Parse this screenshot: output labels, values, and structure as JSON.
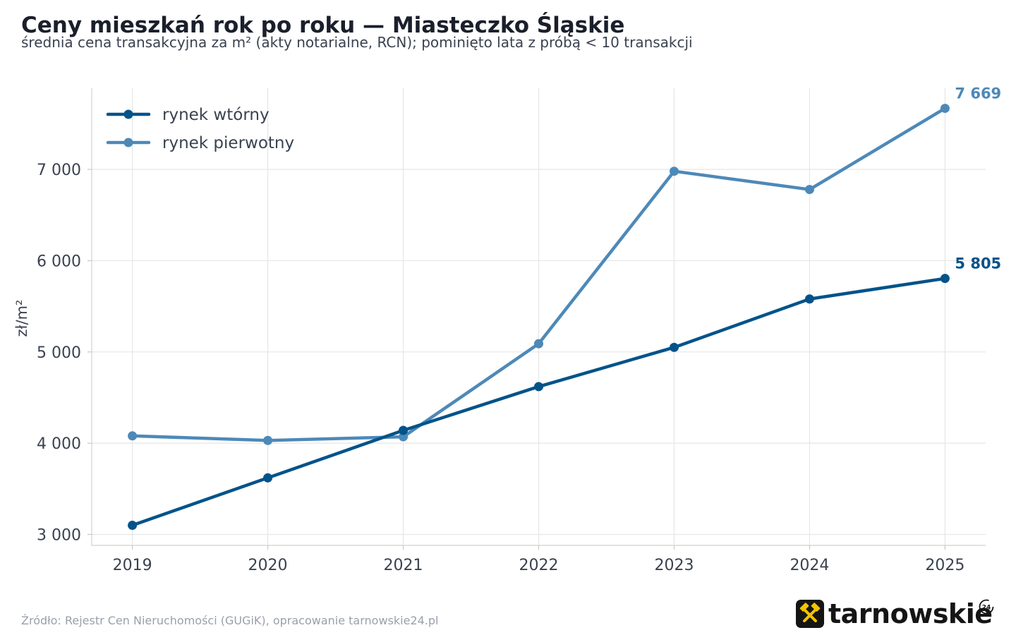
{
  "header": {
    "title": "Ceny mieszkań rok po roku — Miasteczko Śląskie",
    "subtitle": "średnia cena transakcyjna za m² (akty notarialne, RCN); pominięto lata z próbą < 10 transakcji"
  },
  "footer": {
    "source": "Źródło: Rejestr Cen Nieruchomości (GUGiK), opracowanie tarnowskie24.pl"
  },
  "logo": {
    "text": "tarnowskie",
    "badge": "24",
    "icon": "crossed-hammers-icon",
    "accent": "#f2c400"
  },
  "chart_data": {
    "type": "line",
    "title": "Ceny mieszkań rok po roku — Miasteczko Śląskie",
    "subtitle": "średnia cena transakcyjna za m² (akty notarialne, RCN); pominięto lata z próbą < 10 transakcji",
    "xlabel": "",
    "ylabel": "zł/m²",
    "x": [
      2019,
      2020,
      2021,
      2022,
      2023,
      2024,
      2025
    ],
    "x_tick_labels": [
      "2019",
      "2020",
      "2021",
      "2022",
      "2023",
      "2024",
      "2025"
    ],
    "xlim": [
      2018.7,
      2025.3
    ],
    "ylim": [
      2880,
      7890
    ],
    "y_ticks": [
      3000,
      4000,
      5000,
      6000,
      7000
    ],
    "y_tick_labels": [
      "3 000",
      "4 000",
      "5 000",
      "6 000",
      "7 000"
    ],
    "grid": true,
    "legend_position": "top-left",
    "series": [
      {
        "name": "rynek wtórny",
        "color": "#02538a",
        "values": [
          3100,
          3620,
          4140,
          4620,
          5050,
          5580,
          5805
        ],
        "end_label": "5 805"
      },
      {
        "name": "rynek pierwotny",
        "color": "#4d89b8",
        "values": [
          4080,
          4030,
          4070,
          5090,
          6980,
          6780,
          7669
        ],
        "end_label": "7 669"
      }
    ]
  }
}
